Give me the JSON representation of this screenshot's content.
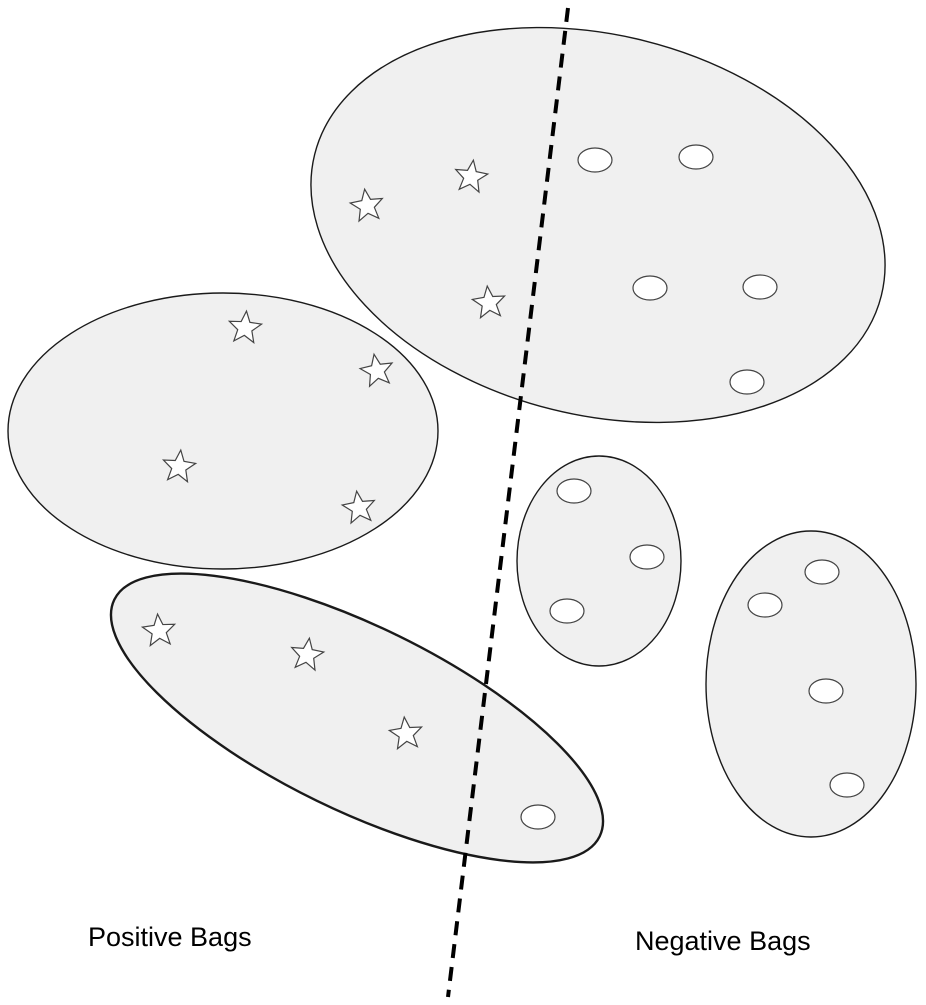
{
  "labels": {
    "positive": "Positive Bags",
    "negative": "Negative Bags"
  },
  "legend_semantics": {
    "star_icon": "positive instance",
    "circle_icon": "negative instance"
  },
  "colors": {
    "bag_fill": "#f0f0f0",
    "outline": "#1a1a1a",
    "separator": "#000000"
  }
}
